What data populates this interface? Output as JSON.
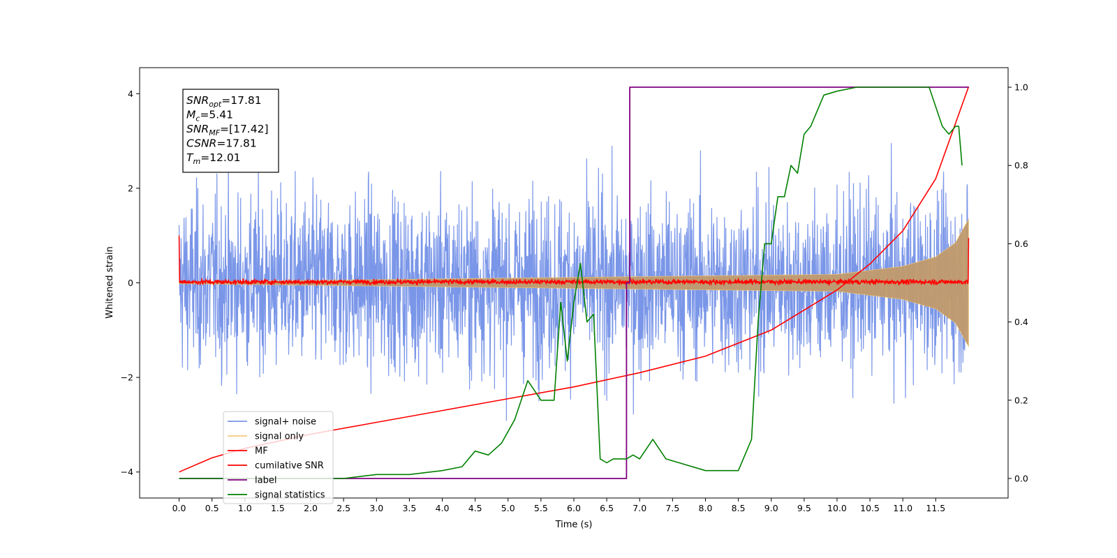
{
  "chart_data": {
    "type": "line",
    "xlabel": "Time (s)",
    "ylabel": "Whitened strain",
    "xlim": [
      -0.6,
      12.6
    ],
    "ylim": [
      -4.55,
      4.55
    ],
    "y2lim": [
      -0.05,
      1.05
    ],
    "xticks": [
      "0.0",
      "0.5",
      "1.0",
      "1.5",
      "2.0",
      "2.5",
      "3.0",
      "3.5",
      "4.0",
      "4.5",
      "5.0",
      "5.5",
      "6.0",
      "6.5",
      "7.0",
      "7.5",
      "8.0",
      "8.5",
      "9.0",
      "9.5",
      "10.0",
      "10.5",
      "11.0",
      "11.5"
    ],
    "yticks": [
      "−4",
      "−2",
      "0",
      "2",
      "4"
    ],
    "y2ticks": [
      "0.0",
      "0.2",
      "0.4",
      "0.6",
      "0.8",
      "1.0"
    ],
    "grid": false,
    "legend_position": "lower-left",
    "info_box": {
      "lines": [
        {
          "base": "SNR",
          "sub": "opt",
          "rest": "=17.81"
        },
        {
          "base": "M",
          "sub": "c",
          "rest": "=5.41"
        },
        {
          "base": "SNR",
          "sub": "MF",
          "rest": "=[17.42]"
        },
        {
          "base": "CSNR",
          "sub": "",
          "rest": "=17.81"
        },
        {
          "base": "T",
          "sub": "m",
          "rest": "=12.01"
        }
      ]
    },
    "series": [
      {
        "name": "signal+ noise",
        "color": "#7a96e8",
        "axis": "left",
        "kind": "noise",
        "y_range": [
          -4.15,
          4.15
        ]
      },
      {
        "name": "signal only",
        "color": "#f5c97a",
        "axis": "left",
        "kind": "chirp_envelope",
        "x": [
          0.0,
          10.0,
          11.0,
          11.5,
          11.8,
          12.0
        ],
        "y_envelope": [
          0.02,
          0.18,
          0.35,
          0.55,
          0.85,
          1.35
        ]
      },
      {
        "name": "MF",
        "color": "#ff0000",
        "axis": "left",
        "kind": "noise_small",
        "y_range": [
          -0.1,
          0.15
        ],
        "endpoints": [
          1.0,
          0.95
        ]
      },
      {
        "name": "cumilative SNR",
        "color": "#ff0000",
        "axis": "left",
        "x": [
          0.0,
          0.5,
          1.0,
          2.0,
          3.0,
          4.0,
          5.0,
          6.0,
          7.0,
          8.0,
          9.0,
          10.0,
          10.5,
          11.0,
          11.5,
          12.0
        ],
        "y": [
          -4.0,
          -3.7,
          -3.5,
          -3.2,
          -2.95,
          -2.7,
          -2.45,
          -2.2,
          -1.9,
          -1.55,
          -1.0,
          -0.15,
          0.4,
          1.1,
          2.2,
          4.15
        ]
      },
      {
        "name": "label",
        "color": "#800080",
        "axis": "right",
        "x": [
          0.0,
          6.8,
          6.8,
          6.85,
          6.85,
          12.0
        ],
        "y": [
          0.0,
          0.0,
          0.5,
          0.5,
          1.0,
          1.0
        ]
      },
      {
        "name": "signal statistics",
        "color": "#008000",
        "axis": "right",
        "x": [
          0.0,
          0.5,
          1.0,
          1.5,
          2.0,
          2.5,
          3.0,
          3.5,
          4.0,
          4.3,
          4.5,
          4.7,
          4.9,
          5.1,
          5.3,
          5.5,
          5.7,
          5.8,
          5.9,
          6.0,
          6.1,
          6.2,
          6.3,
          6.4,
          6.5,
          6.6,
          6.7,
          6.8,
          6.9,
          7.0,
          7.2,
          7.4,
          7.6,
          8.0,
          8.5,
          8.7,
          8.8,
          8.9,
          9.0,
          9.1,
          9.2,
          9.3,
          9.4,
          9.5,
          9.6,
          9.7,
          9.8,
          10.0,
          10.3,
          10.5,
          11.0,
          11.4,
          11.6,
          11.7,
          11.8,
          11.85,
          11.9
        ],
        "y": [
          0.0,
          0.0,
          0.0,
          0.0,
          0.0,
          0.0,
          0.01,
          0.01,
          0.02,
          0.03,
          0.07,
          0.06,
          0.09,
          0.15,
          0.25,
          0.2,
          0.2,
          0.45,
          0.3,
          0.45,
          0.55,
          0.4,
          0.42,
          0.05,
          0.04,
          0.05,
          0.05,
          0.05,
          0.06,
          0.05,
          0.1,
          0.05,
          0.04,
          0.02,
          0.02,
          0.1,
          0.4,
          0.6,
          0.6,
          0.72,
          0.72,
          0.8,
          0.78,
          0.88,
          0.9,
          0.94,
          0.98,
          0.99,
          1.0,
          1.0,
          1.0,
          1.0,
          0.9,
          0.88,
          0.9,
          0.9,
          0.8
        ]
      }
    ]
  }
}
